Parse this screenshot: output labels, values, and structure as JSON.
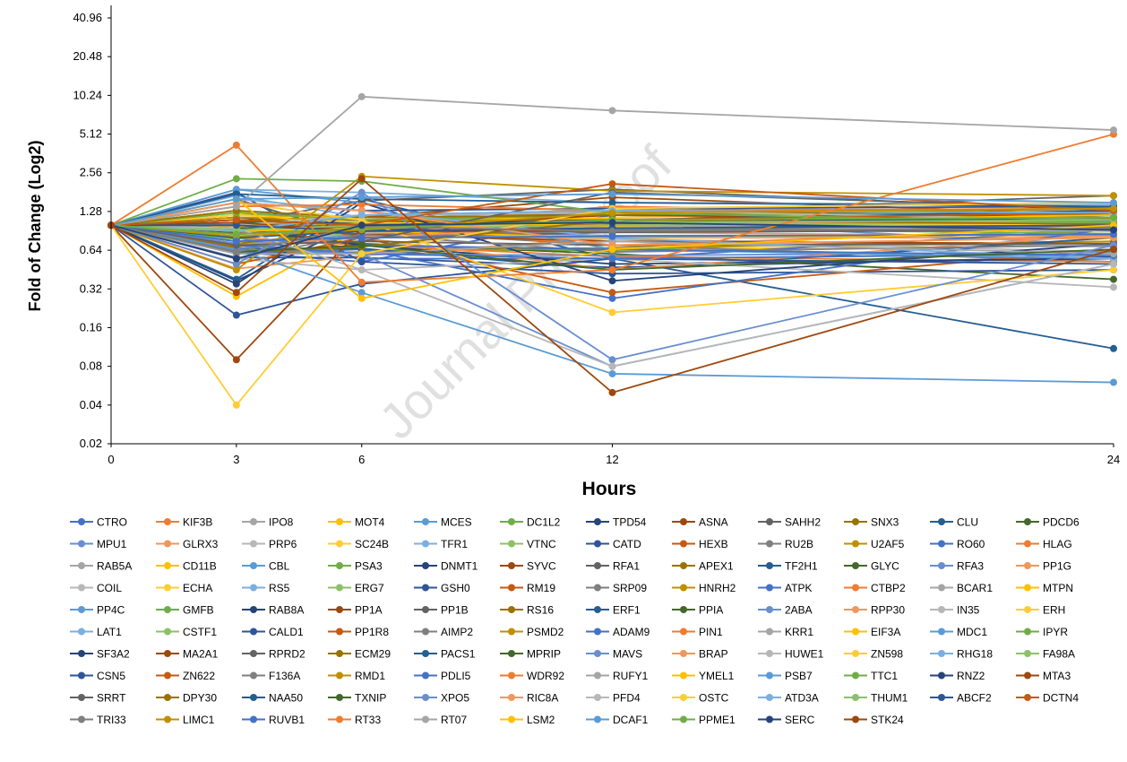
{
  "watermark": "Journal Pre-proof",
  "chart_data": {
    "type": "line",
    "xlabel": "Hours",
    "ylabel": "Fold of Change (Log2)",
    "yscale": "log2",
    "ylim": [
      0.02,
      40.96
    ],
    "xlim": [
      0,
      24
    ],
    "x": [
      0,
      3,
      6,
      12,
      24
    ],
    "x_ticks": [
      "0",
      "3",
      "6",
      "12",
      "24"
    ],
    "y_ticks": [
      "0.02",
      "0.04",
      "0.08",
      "0.16",
      "0.32",
      "0.64",
      "1.28",
      "2.56",
      "5.12",
      "10.24",
      "20.48",
      "40.96"
    ],
    "grid": false,
    "legend_position": "bottom",
    "palette": [
      "#4472C4",
      "#ED7D31",
      "#A5A5A5",
      "#FFC000",
      "#5B9BD5",
      "#70AD47",
      "#264478",
      "#9E480E",
      "#636363",
      "#997300",
      "#255E91",
      "#43682B",
      "#698ED0",
      "#F1975A",
      "#B7B7B7",
      "#FFCD33",
      "#7CAFDD",
      "#8CC168",
      "#2F5597",
      "#C55A11",
      "#7F7F7F",
      "#BF9000"
    ],
    "series": [
      {
        "name": "CTRO",
        "values": [
          1,
          0.62,
          0.52,
          1.2,
          1.02
        ]
      },
      {
        "name": "KIF3B",
        "values": [
          1,
          0.63,
          0.98,
          1.4,
          1.22
        ]
      },
      {
        "name": "IPO8",
        "values": [
          1,
          1.5,
          1.1,
          1.35,
          1.3
        ]
      },
      {
        "name": "MOT4",
        "values": [
          1,
          0.98,
          0.7,
          0.63,
          0.75
        ]
      },
      {
        "name": "MCES",
        "values": [
          1,
          1.3,
          1.1,
          1.2,
          1.15
        ]
      },
      {
        "name": "DC1L2",
        "values": [
          1,
          0.95,
          0.64,
          0.64,
          0.84
        ]
      },
      {
        "name": "TPD54",
        "values": [
          1,
          0.37,
          1.05,
          1.2,
          1.25
        ]
      },
      {
        "name": "ASNA",
        "values": [
          1,
          0.68,
          1.02,
          1.3,
          1.15
        ]
      },
      {
        "name": "SAHH2",
        "values": [
          1,
          1.02,
          1.06,
          1.25,
          1.7
        ]
      },
      {
        "name": "SNX3",
        "values": [
          1,
          0.68,
          1.05,
          1.3,
          1.2
        ]
      },
      {
        "name": "CLU",
        "values": [
          1,
          0.38,
          1.6,
          0.55,
          0.11
        ]
      },
      {
        "name": "PDCD6",
        "values": [
          1,
          0.9,
          0.72,
          0.6,
          0.38
        ]
      },
      {
        "name": "MPU1",
        "values": [
          1,
          0.63,
          0.9,
          1.1,
          0.7
        ]
      },
      {
        "name": "GLRX3",
        "values": [
          1,
          0.46,
          0.58,
          0.8,
          0.8
        ]
      },
      {
        "name": "PRP6",
        "values": [
          1,
          1.05,
          1.2,
          1.25,
          1.1
        ]
      },
      {
        "name": "SC24B",
        "values": [
          1,
          0.92,
          0.98,
          0.93,
          0.96
        ]
      },
      {
        "name": "TFR1",
        "values": [
          1,
          1.7,
          1.15,
          1.1,
          1.0
        ]
      },
      {
        "name": "VTNC",
        "values": [
          1,
          1.04,
          0.97,
          1.25,
          0.96
        ]
      },
      {
        "name": "CATD",
        "values": [
          1,
          0.56,
          0.56,
          0.47,
          0.57
        ]
      },
      {
        "name": "HEXB",
        "values": [
          1,
          0.66,
          0.83,
          1.02,
          1.27
        ]
      },
      {
        "name": "RU2B",
        "values": [
          1,
          1.0,
          0.9,
          0.7,
          0.52
        ]
      },
      {
        "name": "U2AF5",
        "values": [
          1,
          1.1,
          0.93,
          0.92,
          1.03
        ]
      },
      {
        "name": "RO60",
        "values": [
          1,
          0.8,
          0.55,
          0.55,
          0.93
        ]
      },
      {
        "name": "HLAG",
        "values": [
          1,
          0.88,
          0.95,
          0.7,
          0.92
        ]
      },
      {
        "name": "RAB5A",
        "values": [
          1,
          0.75,
          0.85,
          0.78,
          0.68
        ]
      },
      {
        "name": "CD11B",
        "values": [
          1,
          0.28,
          0.95,
          0.98,
          1.02
        ]
      },
      {
        "name": "CBL",
        "values": [
          1,
          0.65,
          0.93,
          1.1,
          1.08
        ]
      },
      {
        "name": "PSA3",
        "values": [
          1,
          0.92,
          1.05,
          0.95,
          0.86
        ]
      },
      {
        "name": "DNMT1",
        "values": [
          1,
          1.15,
          1.0,
          1.05,
          1.12
        ]
      },
      {
        "name": "SYVC",
        "values": [
          1,
          1.2,
          1.15,
          1.65,
          1.2
        ]
      },
      {
        "name": "RFA1",
        "values": [
          1,
          1.05,
          1.55,
          1.9,
          1.3
        ]
      },
      {
        "name": "APEX1",
        "values": [
          1,
          0.72,
          0.9,
          1.05,
          1.1
        ]
      },
      {
        "name": "TF2H1",
        "values": [
          1,
          0.92,
          1.05,
          1.0,
          0.95
        ]
      },
      {
        "name": "GLYC",
        "values": [
          1,
          1.05,
          1.1,
          1.02,
          1.05
        ]
      },
      {
        "name": "RFA3",
        "values": [
          1,
          0.86,
          0.92,
          0.83,
          0.84
        ]
      },
      {
        "name": "PP1G",
        "values": [
          1,
          0.9,
          0.95,
          0.88,
          0.82
        ]
      },
      {
        "name": "COIL",
        "values": [
          1,
          0.7,
          0.88,
          0.78,
          0.62
        ]
      },
      {
        "name": "ECHA",
        "values": [
          1,
          0.82,
          0.95,
          1.15,
          1.3
        ]
      },
      {
        "name": "RS5",
        "values": [
          1,
          1.0,
          1.02,
          1.05,
          0.98
        ]
      },
      {
        "name": "ERG7",
        "values": [
          1,
          1.05,
          0.8,
          0.9,
          0.95
        ]
      },
      {
        "name": "GSH0",
        "values": [
          1,
          1.8,
          0.52,
          0.42,
          0.45
        ]
      },
      {
        "name": "RM19",
        "values": [
          1,
          1.3,
          0.8,
          0.3,
          0.65
        ]
      },
      {
        "name": "SRP09",
        "values": [
          1,
          0.7,
          0.8,
          0.92,
          0.98
        ]
      },
      {
        "name": "HNRH2",
        "values": [
          1,
          0.6,
          0.62,
          0.67,
          0.75
        ]
      },
      {
        "name": "ATPK",
        "values": [
          1,
          0.6,
          0.65,
          0.27,
          0.95
        ]
      },
      {
        "name": "CTBP2",
        "values": [
          1,
          0.8,
          0.7,
          0.57,
          0.52
        ]
      },
      {
        "name": "BCAR1",
        "values": [
          1,
          0.78,
          1.0,
          1.1,
          1.05
        ]
      },
      {
        "name": "MTPN",
        "values": [
          1,
          1.2,
          1.15,
          1.12,
          1.1
        ]
      },
      {
        "name": "PP4C",
        "values": [
          1,
          0.7,
          0.85,
          0.9,
          0.95
        ]
      },
      {
        "name": "GMFB",
        "values": [
          1,
          0.78,
          1.02,
          1.1,
          1.2
        ]
      },
      {
        "name": "RAB8A",
        "values": [
          1,
          0.95,
          0.7,
          0.5,
          0.55
        ]
      },
      {
        "name": "PP1A",
        "values": [
          1,
          1.0,
          0.85,
          0.75,
          0.72
        ]
      },
      {
        "name": "PP1B",
        "values": [
          1,
          1.6,
          0.8,
          0.88,
          0.92
        ]
      },
      {
        "name": "RS16",
        "values": [
          1,
          1.1,
          1.1,
          1.0,
          1.05
        ]
      },
      {
        "name": "ERF1",
        "values": [
          1,
          0.65,
          0.66,
          0.45,
          0.8
        ]
      },
      {
        "name": "PPIA",
        "values": [
          1,
          0.88,
          1.2,
          1.3,
          1.15
        ]
      },
      {
        "name": "2ABA",
        "values": [
          1,
          0.72,
          0.6,
          0.58,
          0.62
        ]
      },
      {
        "name": "RPP30",
        "values": [
          1,
          0.5,
          0.8,
          0.45,
          0.85
        ]
      },
      {
        "name": "IN35",
        "values": [
          1,
          0.55,
          0.45,
          0.55,
          0.33
        ]
      },
      {
        "name": "ERH",
        "values": [
          1,
          1.2,
          1.05,
          1.0,
          1.02
        ]
      },
      {
        "name": "LAT1",
        "values": [
          1,
          1.9,
          1.8,
          1.5,
          1.45
        ]
      },
      {
        "name": "CSTF1",
        "values": [
          1,
          0.8,
          1.0,
          1.1,
          1.1
        ]
      },
      {
        "name": "CALD1",
        "values": [
          1,
          0.2,
          0.35,
          0.55,
          0.5
        ]
      },
      {
        "name": "PP1R8",
        "values": [
          1,
          0.5,
          0.8,
          1.05,
          1.2
        ]
      },
      {
        "name": "AIMP2",
        "values": [
          1,
          0.7,
          0.8,
          0.92,
          1.0
        ]
      },
      {
        "name": "PSMD2",
        "values": [
          1,
          1.15,
          1.1,
          1.1,
          1.12
        ]
      },
      {
        "name": "ADAM9",
        "values": [
          1,
          0.7,
          0.6,
          0.55,
          0.6
        ]
      },
      {
        "name": "PIN1",
        "values": [
          1,
          0.9,
          1.0,
          1.1,
          1.3
        ]
      },
      {
        "name": "KRR1",
        "values": [
          1,
          0.9,
          0.95,
          1.0,
          0.9
        ]
      },
      {
        "name": "EIF3A",
        "values": [
          1,
          1.3,
          0.9,
          0.8,
          0.85
        ]
      },
      {
        "name": "MDC1",
        "values": [
          1,
          1.9,
          1.5,
          0.65,
          0.55
        ]
      },
      {
        "name": "IPYR",
        "values": [
          1,
          1.25,
          1.1,
          1.2,
          1.25
        ]
      },
      {
        "name": "SF3A2",
        "values": [
          1,
          0.35,
          1.5,
          0.37,
          0.72
        ]
      },
      {
        "name": "MA2A1",
        "values": [
          1,
          0.09,
          0.95,
          1.2,
          1.1
        ]
      },
      {
        "name": "RPRD2",
        "values": [
          1,
          0.7,
          0.75,
          0.7,
          0.72
        ]
      },
      {
        "name": "ECM29",
        "values": [
          1,
          1.3,
          1.15,
          1.2,
          1.35
        ]
      },
      {
        "name": "PACS1",
        "values": [
          1,
          0.8,
          0.9,
          1.1,
          1.3
        ]
      },
      {
        "name": "MPRIP",
        "values": [
          1,
          0.95,
          1.0,
          1.05,
          1.15
        ]
      },
      {
        "name": "MAVS",
        "values": [
          1,
          0.65,
          0.6,
          0.08,
          0.5
        ]
      },
      {
        "name": "BRAP",
        "values": [
          1,
          0.7,
          0.8,
          1.0,
          1.1
        ]
      },
      {
        "name": "HUWE1",
        "values": [
          1,
          1.0,
          1.2,
          1.3,
          1.1
        ]
      },
      {
        "name": "ZN598",
        "values": [
          1,
          1.5,
          1.1,
          0.21,
          0.45
        ]
      },
      {
        "name": "RHG18",
        "values": [
          1,
          1.6,
          1.3,
          0.8,
          0.55
        ]
      },
      {
        "name": "FA98A",
        "values": [
          1,
          0.9,
          0.95,
          1.0,
          1.05
        ]
      },
      {
        "name": "CSN5",
        "values": [
          1,
          1.5,
          1.3,
          1.35,
          1.4
        ]
      },
      {
        "name": "ZN622",
        "values": [
          1,
          0.85,
          1.0,
          1.1,
          1.25
        ]
      },
      {
        "name": "F136A",
        "values": [
          1,
          0.55,
          0.85,
          0.62,
          0.7
        ]
      },
      {
        "name": "RMD1",
        "values": [
          1,
          0.45,
          2.4,
          1.85,
          1.7
        ]
      },
      {
        "name": "PDLI5",
        "values": [
          1,
          0.6,
          0.7,
          0.65,
          0.58
        ]
      },
      {
        "name": "WDR92",
        "values": [
          1,
          1.4,
          1.45,
          1.3,
          1.35
        ]
      },
      {
        "name": "RUFY1",
        "values": [
          1,
          0.6,
          0.6,
          0.75,
          0.6
        ]
      },
      {
        "name": "YMEL1",
        "values": [
          1,
          0.9,
          0.95,
          1.05,
          1.2
        ]
      },
      {
        "name": "PSB7",
        "values": [
          1,
          0.65,
          0.3,
          0.07,
          0.06
        ]
      },
      {
        "name": "TTC1",
        "values": [
          1,
          2.3,
          2.2,
          1.25,
          1.05
        ]
      },
      {
        "name": "RNZ2",
        "values": [
          1,
          1.1,
          1.0,
          1.1,
          1.1
        ]
      },
      {
        "name": "MTA3",
        "values": [
          1,
          1.05,
          0.9,
          0.9,
          0.95
        ]
      },
      {
        "name": "SRRT",
        "values": [
          1,
          0.7,
          0.75,
          1.8,
          1.35
        ]
      },
      {
        "name": "DPY30",
        "values": [
          1,
          0.62,
          0.68,
          1.1,
          1.02
        ]
      },
      {
        "name": "NAA50",
        "values": [
          1,
          1.75,
          1.6,
          1.5,
          1.4
        ]
      },
      {
        "name": "TXNIP",
        "values": [
          1,
          0.62,
          0.7,
          0.45,
          0.65
        ]
      },
      {
        "name": "XPO5",
        "values": [
          1,
          0.5,
          1.8,
          0.09,
          0.7
        ]
      },
      {
        "name": "RIC8A",
        "values": [
          1,
          1.5,
          1.3,
          0.7,
          0.8
        ]
      },
      {
        "name": "PFD4",
        "values": [
          1,
          0.95,
          0.45,
          0.08,
          0.5
        ]
      },
      {
        "name": "OSTC",
        "values": [
          1,
          0.04,
          0.6,
          1.35,
          1.5
        ]
      },
      {
        "name": "ATD3A",
        "values": [
          1,
          0.9,
          1.2,
          1.3,
          1.25
        ]
      },
      {
        "name": "THUM1",
        "values": [
          1,
          0.92,
          1.0,
          1.05,
          1.1
        ]
      },
      {
        "name": "ABCF2",
        "values": [
          1,
          1.0,
          0.9,
          0.95,
          1.0
        ]
      },
      {
        "name": "DCTN4",
        "values": [
          1,
          1.1,
          1.0,
          2.1,
          1.3
        ]
      },
      {
        "name": "TRI33",
        "values": [
          1,
          0.62,
          0.98,
          0.9,
          0.95
        ]
      },
      {
        "name": "LIMC1",
        "values": [
          1,
          0.82,
          0.92,
          1.25,
          1.35
        ]
      },
      {
        "name": "RUVB1",
        "values": [
          1,
          0.75,
          0.8,
          0.82,
          0.85
        ]
      },
      {
        "name": "RT33",
        "values": [
          1,
          4.2,
          0.36,
          0.45,
          5.1
        ]
      },
      {
        "name": "RT07",
        "values": [
          1,
          1.4,
          10.0,
          7.8,
          5.5
        ]
      },
      {
        "name": "LSM2",
        "values": [
          1,
          1.6,
          0.27,
          0.65,
          1.0
        ]
      },
      {
        "name": "DCAF1",
        "values": [
          1,
          1.6,
          1.65,
          1.75,
          1.5
        ]
      },
      {
        "name": "PPME1",
        "values": [
          1,
          0.85,
          0.95,
          1.1,
          1.15
        ]
      },
      {
        "name": "SERC",
        "values": [
          1,
          0.55,
          1.0,
          1.05,
          0.92
        ]
      },
      {
        "name": "STK24",
        "values": [
          1,
          0.3,
          2.3,
          0.05,
          0.65
        ]
      }
    ]
  }
}
